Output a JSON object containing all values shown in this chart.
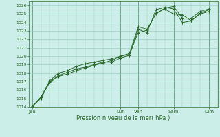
{
  "xlabel": "Pression niveau de la mer( hPa )",
  "bg_color": "#cceee8",
  "grid_color": "#99ccbb",
  "line_color": "#2d6a2d",
  "ylim": [
    1014,
    1026.5
  ],
  "yticks": [
    1014,
    1015,
    1016,
    1017,
    1018,
    1019,
    1020,
    1021,
    1022,
    1023,
    1024,
    1025,
    1026
  ],
  "day_tick_x": [
    0,
    5,
    6,
    8,
    10
  ],
  "day_labels": [
    "Jeu",
    "Lun",
    "Ven",
    "Sam",
    "Dim"
  ],
  "xlim": [
    -0.2,
    10.5
  ],
  "series1_x": [
    0.0,
    0.5,
    1.0,
    1.5,
    2.0,
    2.5,
    3.0,
    3.5,
    4.0,
    4.5,
    5.0,
    5.5,
    6.0,
    6.5,
    7.0,
    7.5,
    8.0,
    8.5,
    9.0,
    9.5,
    10.0
  ],
  "series1_y": [
    1014.0,
    1015.1,
    1016.9,
    1017.6,
    1017.9,
    1018.3,
    1018.6,
    1018.9,
    1019.2,
    1019.5,
    1020.0,
    1020.2,
    1022.8,
    1023.1,
    1025.1,
    1025.6,
    1025.0,
    1024.9,
    1024.2,
    1025.1,
    1025.5
  ],
  "series2_x": [
    0.0,
    0.5,
    1.0,
    1.5,
    2.0,
    2.5,
    3.0,
    3.5,
    4.0,
    4.5,
    5.0,
    5.5,
    6.0,
    6.5,
    7.0,
    7.5,
    8.0,
    8.5,
    9.0,
    9.5,
    10.0
  ],
  "series2_y": [
    1014.1,
    1015.0,
    1017.0,
    1017.7,
    1018.1,
    1018.5,
    1018.7,
    1019.0,
    1019.3,
    1019.3,
    1019.8,
    1020.1,
    1023.2,
    1022.8,
    1025.5,
    1025.8,
    1025.6,
    1024.0,
    1024.2,
    1025.0,
    1025.3
  ],
  "series3_x": [
    0.0,
    0.5,
    1.0,
    1.5,
    2.0,
    2.5,
    3.0,
    3.5,
    4.0,
    4.5,
    5.0,
    5.5,
    6.0,
    6.5,
    7.0,
    7.5,
    8.0,
    8.5,
    9.0,
    9.5,
    10.0
  ],
  "series3_y": [
    1014.0,
    1015.2,
    1017.1,
    1018.0,
    1018.3,
    1018.8,
    1019.1,
    1019.3,
    1019.5,
    1019.7,
    1020.0,
    1020.3,
    1023.5,
    1023.2,
    1025.0,
    1025.7,
    1025.9,
    1024.5,
    1024.5,
    1025.3,
    1025.6
  ]
}
